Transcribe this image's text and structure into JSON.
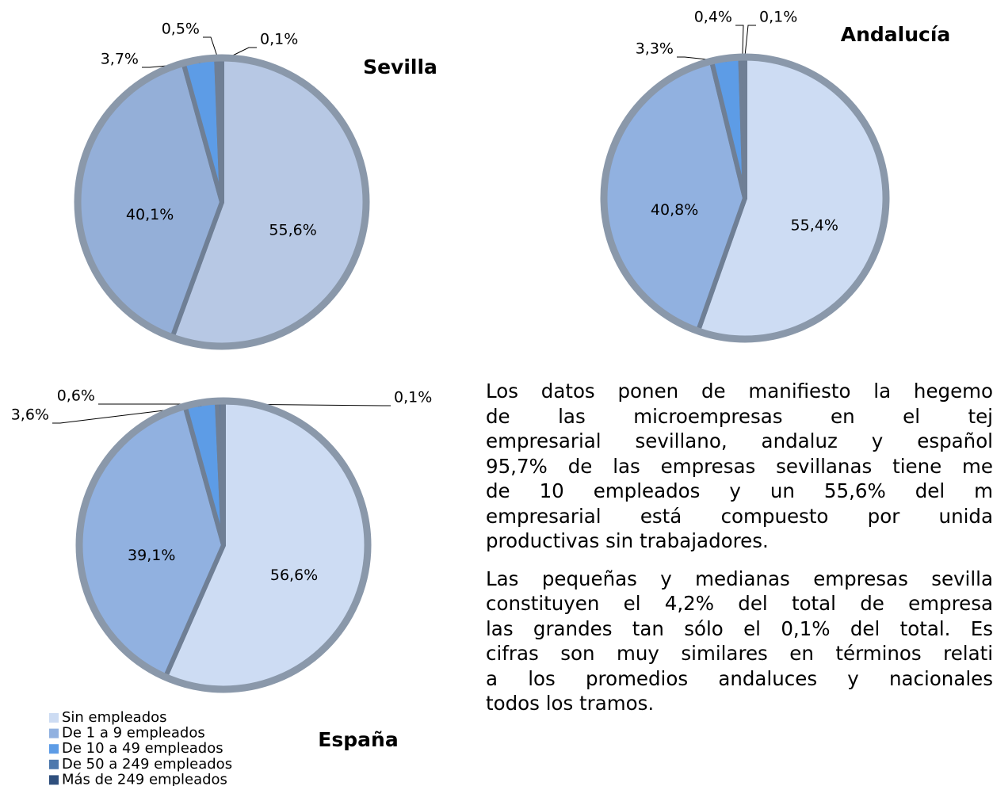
{
  "chart_data": [
    {
      "type": "pie",
      "title": "Sevilla",
      "values": [
        55.6,
        40.1,
        3.7,
        0.5,
        0.1
      ],
      "value_labels": [
        "55,6%",
        "40,1%",
        "3,7%",
        "0,5%",
        "0,1%"
      ],
      "colors": [
        "#b7c8e4",
        "#94afd8",
        "#5d9ce6",
        "#4d78ad",
        "#2f4f7d"
      ]
    },
    {
      "type": "pie",
      "title": "Andalucía",
      "values": [
        55.4,
        40.8,
        3.3,
        0.4,
        0.1
      ],
      "value_labels": [
        "55,4%",
        "40,8%",
        "3,3%",
        "0,4%",
        "0,1%"
      ],
      "colors": [
        "#cddcf3",
        "#91b1e0",
        "#5d9ce6",
        "#4d78ad",
        "#2f4f7d"
      ]
    },
    {
      "type": "pie",
      "title": "España",
      "categories": [
        "Sin empleados",
        "De 1 a 9 empleados",
        "De 10 a 49 empleados",
        "De 50 a 249 empleados",
        "Más de 249 empleados"
      ],
      "values": [
        56.6,
        39.1,
        3.6,
        0.6,
        0.1
      ],
      "value_labels": [
        "56,6%",
        "39,1%",
        "3,6%",
        "0,6%",
        "0,1%"
      ],
      "colors": [
        "#cddcf3",
        "#91b1e0",
        "#5d9ce6",
        "#4d78ad",
        "#2f4f7d"
      ],
      "legend": "bottom-left"
    }
  ],
  "paragraphs": [
    [
      "Los datos ponen de manifiesto la hegemo",
      "de las microempresas en el tej",
      "empresarial sevillano, andaluz y español",
      "95,7% de las empresas sevillanas tiene me",
      "de 10 empleados y un 55,6% del m",
      "empresarial está compuesto por unida",
      "productivas sin trabajadores."
    ],
    [
      "Las pequeñas y medianas empresas sevilla",
      "constituyen el 4,2% del total de empresa",
      "las grandes tan sólo el 0,1% del total. Es",
      "cifras son muy similares en términos relati",
      "a los promedios andaluces y nacionales",
      "todos los tramos."
    ]
  ]
}
